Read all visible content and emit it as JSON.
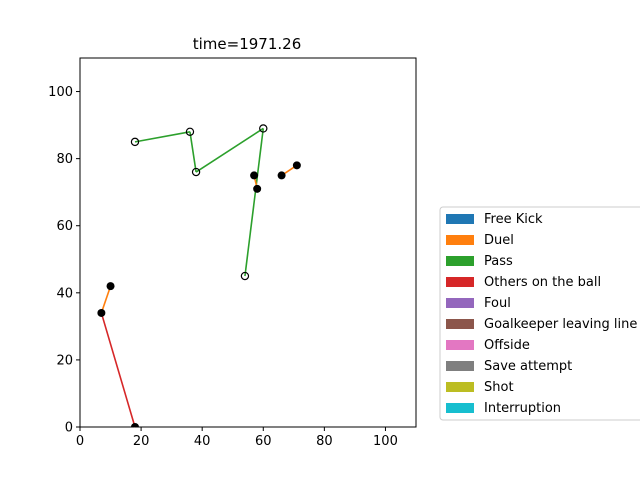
{
  "chart_data": {
    "type": "scatter",
    "title": "time=1971.26",
    "xlim": [
      0,
      110
    ],
    "ylim": [
      0,
      110
    ],
    "xticks": [
      0,
      20,
      40,
      60,
      80,
      100
    ],
    "yticks": [
      0,
      20,
      40,
      60,
      80,
      100
    ],
    "grid": false,
    "legend_placement": "outside-right",
    "legend": [
      {
        "label": "Free Kick",
        "color": "#1f77b4"
      },
      {
        "label": "Duel",
        "color": "#ff7f0e"
      },
      {
        "label": "Pass",
        "color": "#2ca02c"
      },
      {
        "label": "Others on the ball",
        "color": "#d62728"
      },
      {
        "label": "Foul",
        "color": "#9467bd"
      },
      {
        "label": "Goalkeeper leaving line",
        "color": "#8c564b"
      },
      {
        "label": "Offside",
        "color": "#e377c2"
      },
      {
        "label": "Save attempt",
        "color": "#7f7f7f"
      },
      {
        "label": "Shot",
        "color": "#bcbd22"
      },
      {
        "label": "Interruption",
        "color": "#17becf"
      }
    ],
    "segments": [
      {
        "event": "Pass",
        "color": "#2ca02c",
        "x": [
          18,
          36
        ],
        "y": [
          85,
          88
        ]
      },
      {
        "event": "Pass",
        "color": "#2ca02c",
        "x": [
          36,
          38
        ],
        "y": [
          88,
          76
        ]
      },
      {
        "event": "Pass",
        "color": "#2ca02c",
        "x": [
          38,
          60
        ],
        "y": [
          76,
          89
        ]
      },
      {
        "event": "Pass",
        "color": "#2ca02c",
        "x": [
          60,
          54
        ],
        "y": [
          89,
          45
        ]
      },
      {
        "event": "Duel",
        "color": "#ff7f0e",
        "x": [
          66,
          71
        ],
        "y": [
          75,
          78
        ]
      },
      {
        "event": "Duel",
        "color": "#ff7f0e",
        "x": [
          57,
          58
        ],
        "y": [
          75,
          71
        ]
      },
      {
        "event": "Duel",
        "color": "#ff7f0e",
        "x": [
          7,
          10
        ],
        "y": [
          34,
          42
        ]
      },
      {
        "event": "Others on the ball",
        "color": "#d62728",
        "x": [
          7,
          18
        ],
        "y": [
          34,
          0
        ]
      }
    ],
    "points_filled": [
      {
        "x": 57,
        "y": 75
      },
      {
        "x": 58,
        "y": 71
      },
      {
        "x": 66,
        "y": 75
      },
      {
        "x": 71,
        "y": 78
      },
      {
        "x": 7,
        "y": 34
      },
      {
        "x": 10,
        "y": 42
      },
      {
        "x": 18,
        "y": 0
      }
    ],
    "points_open": [
      {
        "x": 18,
        "y": 85
      },
      {
        "x": 36,
        "y": 88
      },
      {
        "x": 38,
        "y": 76
      },
      {
        "x": 60,
        "y": 89
      },
      {
        "x": 54,
        "y": 45
      }
    ]
  }
}
